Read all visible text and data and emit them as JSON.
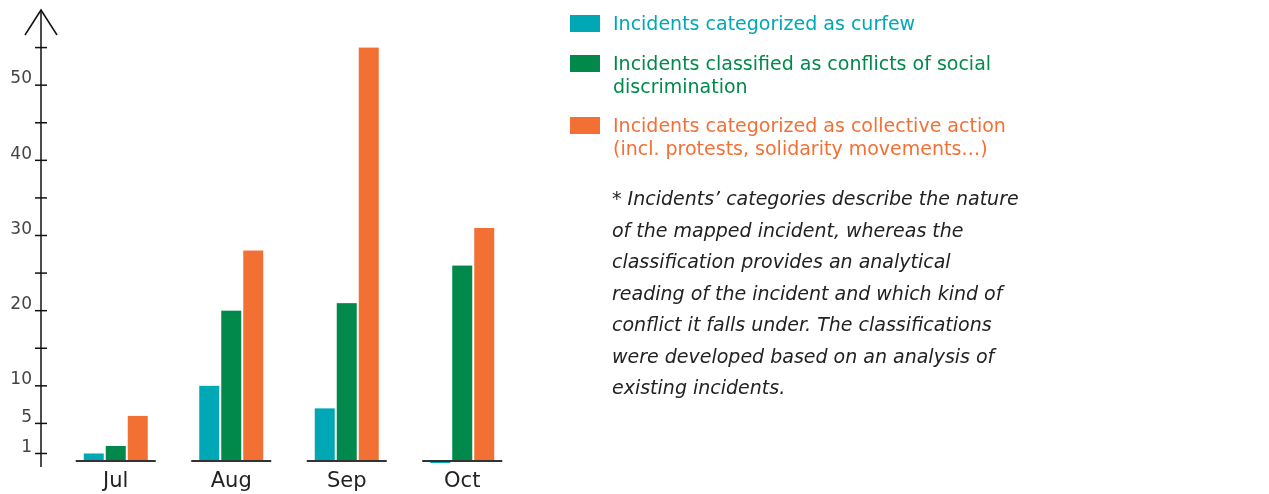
{
  "chart_data": {
    "type": "bar",
    "categories": [
      "Jul",
      "Aug",
      "Sep",
      "Oct"
    ],
    "series": [
      {
        "name": "Incidents categorized as curfew",
        "color": "#00a8b5",
        "values": [
          1,
          10,
          7,
          0
        ]
      },
      {
        "name": "Incidents classified as conflicts of social discrimination",
        "color": "#00894a",
        "values": [
          2,
          20,
          21,
          26
        ]
      },
      {
        "name": "Incidents categorized as collective action (incl. protests, solidarity movements…)",
        "color": "#f37035",
        "values": [
          6,
          28,
          55,
          31
        ]
      }
    ],
    "ylim": [
      0,
      60
    ],
    "yticks": [
      1,
      5,
      10,
      {
        "value": 15,
        "label": null
      },
      20,
      {
        "value": 25,
        "label": null
      },
      30,
      {
        "value": 35,
        "label": null
      },
      40,
      {
        "value": 45,
        "label": null
      },
      50,
      {
        "value": 55,
        "label": null
      }
    ],
    "legend": "top right",
    "grid": false,
    "annotations": [
      "* Incidents’ categories describe the nature of the mapped incident, whereas the classification provides an analytical reading of the incident and which kind of conflict it falls under. The classifications were developed based on an analysis of existing incidents."
    ]
  }
}
